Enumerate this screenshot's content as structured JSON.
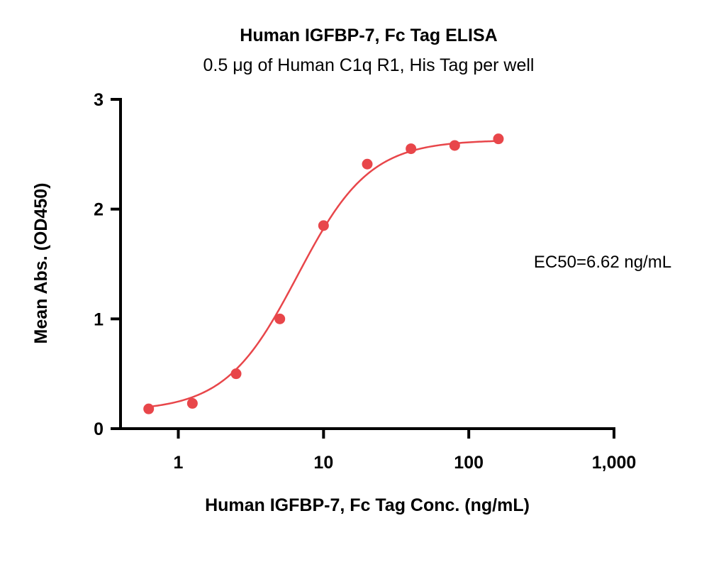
{
  "chart_data": {
    "type": "scatter",
    "title": "Human IGFBP-7, Fc Tag ELISA",
    "subtitle": "0.5 μg of Human C1q R1, His Tag per well",
    "xlabel": "Human IGFBP-7, Fc Tag Conc. (ng/mL)",
    "ylabel": "Mean Abs. (OD450)",
    "x_scale": "log",
    "xlim": [
      0.4,
      1000
    ],
    "ylim": [
      0,
      3
    ],
    "x_ticks": [
      1,
      10,
      100,
      1000
    ],
    "x_tick_labels": [
      "1",
      "10",
      "100",
      "1,000"
    ],
    "y_ticks": [
      0,
      1,
      2,
      3
    ],
    "y_tick_labels": [
      "0",
      "1",
      "2",
      "3"
    ],
    "grid": false,
    "annotation": "EC50=6.62 ng/mL",
    "ec50": 6.62,
    "series": [
      {
        "x": [
          0.625,
          1.25,
          2.5,
          5,
          10,
          20,
          40,
          80,
          160
        ],
        "y": [
          0.18,
          0.23,
          0.5,
          1.0,
          1.85,
          2.41,
          2.55,
          2.58,
          2.64
        ],
        "color": "#e8464a",
        "fit": "4PL"
      }
    ]
  }
}
